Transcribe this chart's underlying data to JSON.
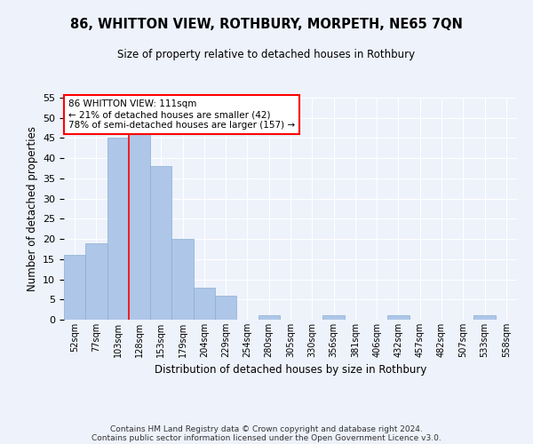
{
  "title1": "86, WHITTON VIEW, ROTHBURY, MORPETH, NE65 7QN",
  "title2": "Size of property relative to detached houses in Rothbury",
  "xlabel": "Distribution of detached houses by size in Rothbury",
  "ylabel": "Number of detached properties",
  "categories": [
    "52sqm",
    "77sqm",
    "103sqm",
    "128sqm",
    "153sqm",
    "179sqm",
    "204sqm",
    "229sqm",
    "254sqm",
    "280sqm",
    "305sqm",
    "330sqm",
    "356sqm",
    "381sqm",
    "406sqm",
    "432sqm",
    "457sqm",
    "482sqm",
    "507sqm",
    "533sqm",
    "558sqm"
  ],
  "values": [
    16,
    19,
    45,
    46,
    38,
    20,
    8,
    6,
    0,
    1,
    0,
    0,
    1,
    0,
    0,
    1,
    0,
    0,
    0,
    1,
    0
  ],
  "bar_color": "#aec6e8",
  "bar_edge_color": "#8aafd0",
  "ylim": [
    0,
    55
  ],
  "yticks": [
    0,
    5,
    10,
    15,
    20,
    25,
    30,
    35,
    40,
    45,
    50,
    55
  ],
  "red_line_x": 2.5,
  "annotation_line1": "86 WHITTON VIEW: 111sqm",
  "annotation_line2": "← 21% of detached houses are smaller (42)",
  "annotation_line3": "78% of semi-detached houses are larger (157) →",
  "footer1": "Contains HM Land Registry data © Crown copyright and database right 2024.",
  "footer2": "Contains public sector information licensed under the Open Government Licence v3.0.",
  "background_color": "#eef2fb",
  "grid_color": "#ffffff"
}
